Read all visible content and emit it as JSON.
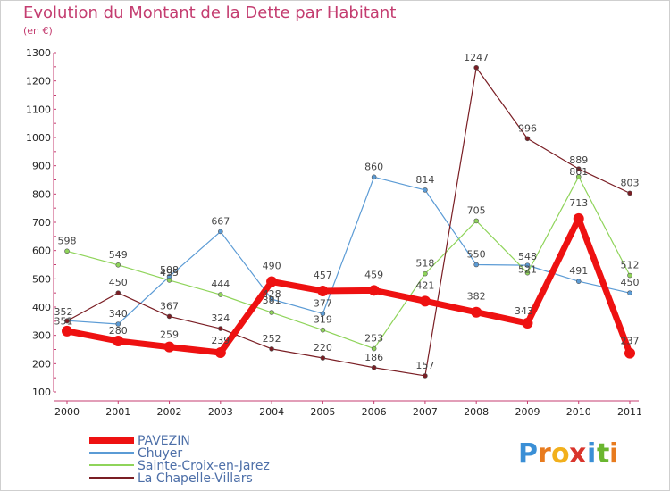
{
  "title": "Evolution du Montant de la Dette par Habitant",
  "subtitle": "(en €)",
  "logo": {
    "letters": [
      "P",
      "r",
      "o",
      "x",
      "i",
      "t",
      "i"
    ],
    "colors": [
      "#3a8fd6",
      "#e87b1e",
      "#f2b01c",
      "#d9342b",
      "#3a8fd6",
      "#6ab630",
      "#e87b1e"
    ]
  },
  "chart_data": {
    "type": "line",
    "categories": [
      "2000",
      "2001",
      "2002",
      "2003",
      "2004",
      "2005",
      "2006",
      "2007",
      "2008",
      "2009",
      "2010",
      "2011"
    ],
    "ylim": [
      100,
      1300
    ],
    "yticks": [
      100,
      200,
      300,
      400,
      500,
      600,
      700,
      800,
      900,
      1000,
      1100,
      1200,
      1300
    ],
    "grid": false,
    "legend_position": "bottom-left",
    "series": [
      {
        "name": "Chuyer",
        "color": "#5b9bd5",
        "width": 1.2,
        "dot": 5,
        "values": [
          352,
          340,
          508,
          667,
          428,
          377,
          860,
          814,
          550,
          548,
          491,
          450
        ]
      },
      {
        "name": "Sainte-Croix-en-Jarez",
        "color": "#8fd45a",
        "width": 1.2,
        "dot": 5,
        "values": [
          598,
          549,
          495,
          444,
          381,
          319,
          253,
          518,
          705,
          521,
          861,
          512
        ]
      },
      {
        "name": "La Chapelle-Villars",
        "color": "#7a1e24",
        "width": 1.2,
        "dot": 5,
        "values": [
          351,
          450,
          367,
          324,
          252,
          220,
          186,
          157,
          1247,
          996,
          889,
          803
        ]
      },
      {
        "name": "PAVEZIN",
        "color": "#ee1111",
        "width": 7,
        "dot": 12,
        "values": [
          315,
          280,
          259,
          239,
          490,
          457,
          459,
          421,
          382,
          343,
          713,
          237
        ]
      }
    ],
    "value_labels": [
      {
        "text": "352",
        "i": 0,
        "v": 352,
        "dx": -4,
        "dy": -6
      },
      {
        "text": "351",
        "i": 0,
        "v": 351,
        "dx": -4,
        "dy": 4
      },
      {
        "text": "598",
        "i": 0,
        "v": 598,
        "dx": 0,
        "dy": -8
      },
      {
        "text": "549",
        "i": 1,
        "v": 549,
        "dx": 0,
        "dy": -8
      },
      {
        "text": "450",
        "i": 1,
        "v": 450,
        "dx": 0,
        "dy": -8
      },
      {
        "text": "340",
        "i": 1,
        "v": 340,
        "dx": 0,
        "dy": -8
      },
      {
        "text": "280",
        "i": 1,
        "v": 280,
        "dx": 0,
        "dy": -8
      },
      {
        "text": "508",
        "i": 2,
        "v": 508,
        "dx": 0,
        "dy": -4
      },
      {
        "text": "495",
        "i": 2,
        "v": 495,
        "dx": 0,
        "dy": -5
      },
      {
        "text": "367",
        "i": 2,
        "v": 367,
        "dx": 0,
        "dy": -8
      },
      {
        "text": "259",
        "i": 2,
        "v": 259,
        "dx": 0,
        "dy": -10
      },
      {
        "text": "667",
        "i": 3,
        "v": 667,
        "dx": 0,
        "dy": -8
      },
      {
        "text": "444",
        "i": 3,
        "v": 444,
        "dx": 0,
        "dy": -8
      },
      {
        "text": "324",
        "i": 3,
        "v": 324,
        "dx": 0,
        "dy": -8
      },
      {
        "text": "239",
        "i": 3,
        "v": 239,
        "dx": 0,
        "dy": -10
      },
      {
        "text": "490",
        "i": 4,
        "v": 490,
        "dx": 0,
        "dy": -14
      },
      {
        "text": "428",
        "i": 4,
        "v": 428,
        "dx": 0,
        "dy": -2
      },
      {
        "text": "381",
        "i": 4,
        "v": 381,
        "dx": 0,
        "dy": -10
      },
      {
        "text": "252",
        "i": 4,
        "v": 252,
        "dx": 0,
        "dy": -8
      },
      {
        "text": "457",
        "i": 5,
        "v": 457,
        "dx": 0,
        "dy": -14
      },
      {
        "text": "377",
        "i": 5,
        "v": 377,
        "dx": 0,
        "dy": -8
      },
      {
        "text": "319",
        "i": 5,
        "v": 319,
        "dx": 0,
        "dy": -8
      },
      {
        "text": "220",
        "i": 5,
        "v": 220,
        "dx": 0,
        "dy": -8
      },
      {
        "text": "860",
        "i": 6,
        "v": 860,
        "dx": 0,
        "dy": -8
      },
      {
        "text": "459",
        "i": 6,
        "v": 459,
        "dx": 0,
        "dy": -14
      },
      {
        "text": "253",
        "i": 6,
        "v": 253,
        "dx": 0,
        "dy": -8
      },
      {
        "text": "186",
        "i": 6,
        "v": 186,
        "dx": 0,
        "dy": -8
      },
      {
        "text": "814",
        "i": 7,
        "v": 814,
        "dx": 0,
        "dy": -8
      },
      {
        "text": "518",
        "i": 7,
        "v": 518,
        "dx": 0,
        "dy": -8
      },
      {
        "text": "421",
        "i": 7,
        "v": 421,
        "dx": 0,
        "dy": -14
      },
      {
        "text": "157",
        "i": 7,
        "v": 157,
        "dx": 0,
        "dy": -8
      },
      {
        "text": "1247",
        "i": 8,
        "v": 1247,
        "dx": 0,
        "dy": -8
      },
      {
        "text": "705",
        "i": 8,
        "v": 705,
        "dx": 0,
        "dy": -8
      },
      {
        "text": "550",
        "i": 8,
        "v": 550,
        "dx": 0,
        "dy": -8
      },
      {
        "text": "382",
        "i": 8,
        "v": 382,
        "dx": 0,
        "dy": -14
      },
      {
        "text": "996",
        "i": 9,
        "v": 996,
        "dx": 0,
        "dy": -8
      },
      {
        "text": "548",
        "i": 9,
        "v": 548,
        "dx": 0,
        "dy": -6
      },
      {
        "text": "521",
        "i": 9,
        "v": 521,
        "dx": 0,
        "dy": 0
      },
      {
        "text": "343",
        "i": 9,
        "v": 343,
        "dx": -4,
        "dy": -10
      },
      {
        "text": "889",
        "i": 10,
        "v": 889,
        "dx": 0,
        "dy": -6
      },
      {
        "text": "861",
        "i": 10,
        "v": 861,
        "dx": 0,
        "dy": -2
      },
      {
        "text": "713",
        "i": 10,
        "v": 713,
        "dx": 0,
        "dy": -14
      },
      {
        "text": "491",
        "i": 10,
        "v": 491,
        "dx": 0,
        "dy": -8
      },
      {
        "text": "803",
        "i": 11,
        "v": 803,
        "dx": 0,
        "dy": -8
      },
      {
        "text": "512",
        "i": 11,
        "v": 512,
        "dx": 0,
        "dy": -8
      },
      {
        "text": "450",
        "i": 11,
        "v": 450,
        "dx": 0,
        "dy": -8
      },
      {
        "text": "237",
        "i": 11,
        "v": 237,
        "dx": 0,
        "dy": -10
      }
    ],
    "legend": [
      {
        "name": "PAVEZIN",
        "color": "#ee1111",
        "width": 8
      },
      {
        "name": "Chuyer",
        "color": "#5b9bd5",
        "width": 2
      },
      {
        "name": "Sainte-Croix-en-Jarez",
        "color": "#8fd45a",
        "width": 2
      },
      {
        "name": "La Chapelle-Villars",
        "color": "#7a1e24",
        "width": 2
      }
    ]
  }
}
